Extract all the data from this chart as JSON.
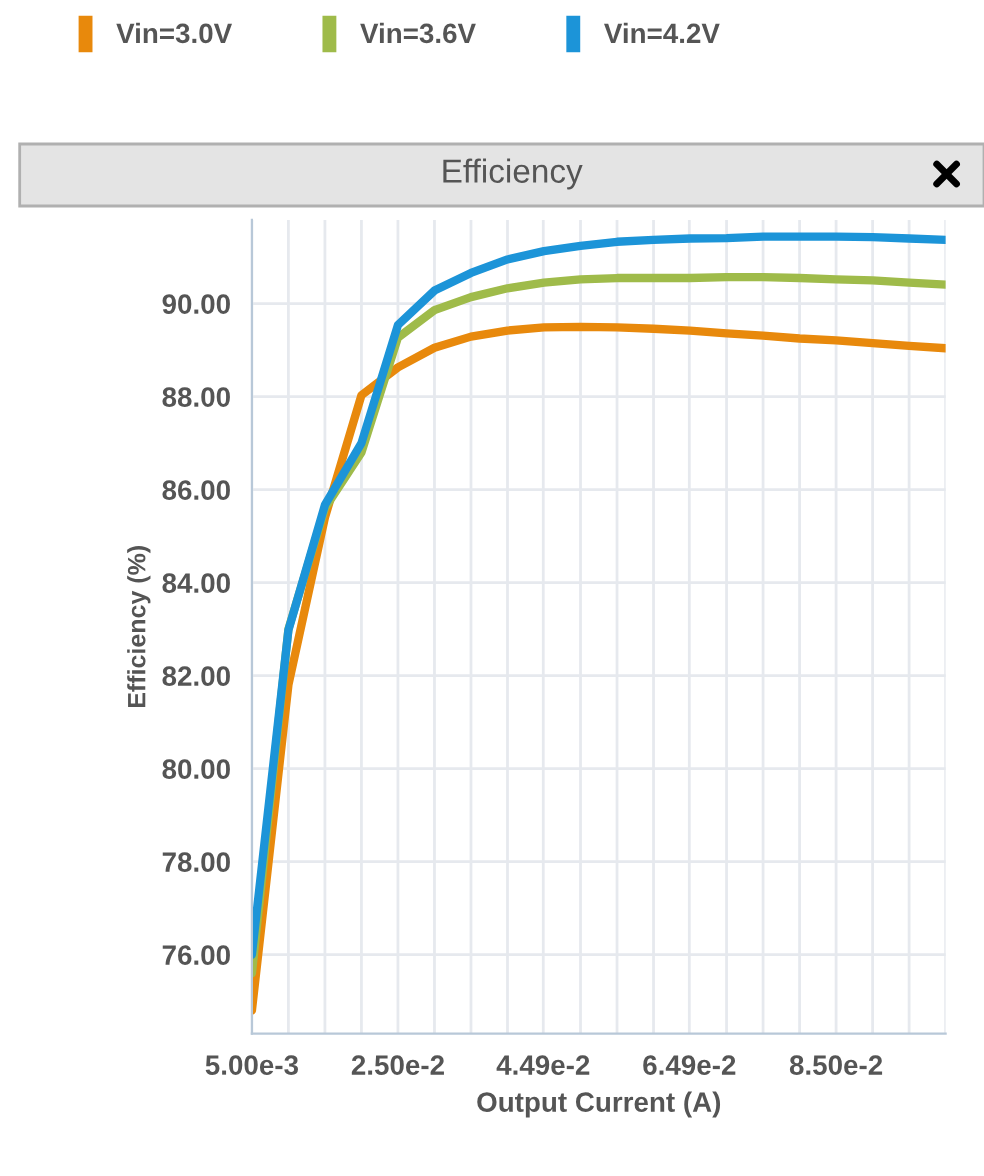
{
  "chart_data": {
    "type": "line",
    "title": "Efficiency",
    "xlabel": "Output Current (A)",
    "ylabel": "Efficiency (%)",
    "x": [
      0.005,
      0.01,
      0.015,
      0.02,
      0.025,
      0.03,
      0.035,
      0.04,
      0.045,
      0.05,
      0.055,
      0.06,
      0.065,
      0.07,
      0.075,
      0.08,
      0.085,
      0.09,
      0.095,
      0.1
    ],
    "series": [
      {
        "name": "Vin=3.0V",
        "color": "#e8890c",
        "values": [
          74.8,
          81.8,
          85.4,
          88.03,
          88.63,
          89.05,
          89.29,
          89.42,
          89.49,
          89.5,
          89.49,
          89.46,
          89.42,
          89.36,
          89.31,
          89.25,
          89.21,
          89.15,
          89.09,
          89.04
        ]
      },
      {
        "name": "Vin=3.6V",
        "color": "#9fbb4a",
        "values": [
          75.6,
          83.0,
          85.6,
          86.8,
          89.27,
          89.86,
          90.14,
          90.33,
          90.45,
          90.52,
          90.55,
          90.55,
          90.55,
          90.57,
          90.57,
          90.55,
          90.52,
          90.5,
          90.45,
          90.41
        ]
      },
      {
        "name": "Vin=4.2V",
        "color": "#1c94d8",
        "values": [
          76.0,
          82.98,
          85.67,
          87.0,
          89.54,
          90.28,
          90.66,
          90.95,
          91.13,
          91.24,
          91.33,
          91.37,
          91.4,
          91.41,
          91.44,
          91.44,
          91.44,
          91.43,
          91.4,
          91.37
        ]
      }
    ],
    "xlim": [
      0.005,
      0.1
    ],
    "ylim": [
      74.3,
      91.8
    ],
    "xticks": [
      {
        "value": 0.005,
        "label": "5.00e-3"
      },
      {
        "value": 0.01,
        "label": null
      },
      {
        "value": 0.015,
        "label": null
      },
      {
        "value": 0.02,
        "label": null
      },
      {
        "value": 0.025,
        "label": "2.50e-2"
      },
      {
        "value": 0.03,
        "label": null
      },
      {
        "value": 0.035,
        "label": null
      },
      {
        "value": 0.04,
        "label": null
      },
      {
        "value": 0.0449,
        "label": "4.49e-2"
      },
      {
        "value": 0.05,
        "label": null
      },
      {
        "value": 0.055,
        "label": null
      },
      {
        "value": 0.06,
        "label": null
      },
      {
        "value": 0.0649,
        "label": "6.49e-2"
      },
      {
        "value": 0.07,
        "label": null
      },
      {
        "value": 0.075,
        "label": null
      },
      {
        "value": 0.08,
        "label": null
      },
      {
        "value": 0.085,
        "label": "8.50e-2"
      },
      {
        "value": 0.09,
        "label": null
      },
      {
        "value": 0.095,
        "label": null
      },
      {
        "value": 0.1,
        "label": null
      }
    ],
    "yticks": [
      {
        "value": 76,
        "label": "76.00"
      },
      {
        "value": 78,
        "label": "78.00"
      },
      {
        "value": 80,
        "label": "80.00"
      },
      {
        "value": 82,
        "label": "82.00"
      },
      {
        "value": 84,
        "label": "84.00"
      },
      {
        "value": 86,
        "label": "86.00"
      },
      {
        "value": 88,
        "label": "88.00"
      },
      {
        "value": 90,
        "label": "90.00"
      }
    ],
    "grid": true,
    "legend": "top",
    "marker": "none",
    "line_style": "solid"
  }
}
